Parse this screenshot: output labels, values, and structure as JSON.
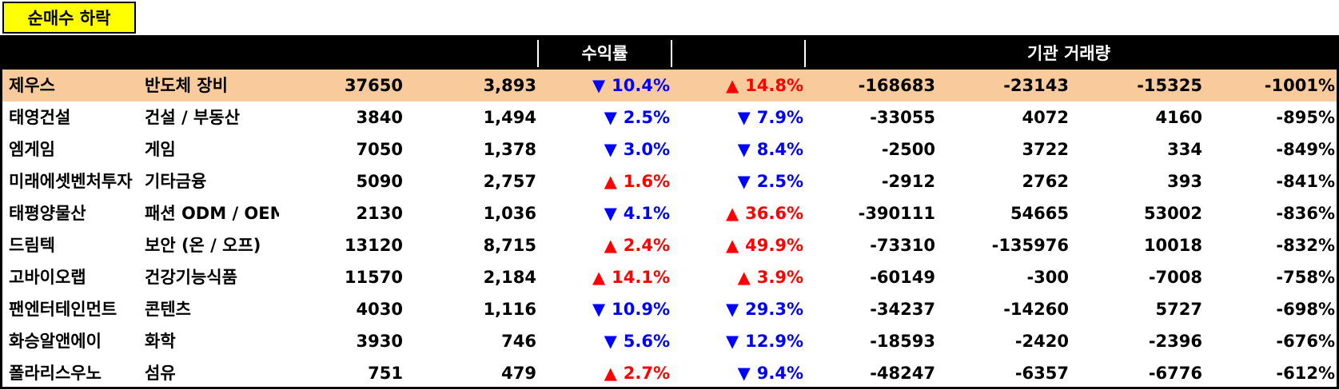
{
  "title": "순매수 하락",
  "header": {
    "group_return": "수익률",
    "group_inst": "기관 거래량"
  },
  "rows": [
    {
      "name": "제우스",
      "sector": "반도체 장비",
      "price": "37650",
      "amount": "3,893",
      "r1_dir": "down",
      "r1": "10.4%",
      "r2_dir": "up",
      "r2": "14.8%",
      "v1": "-168683",
      "v2": "-23143",
      "v3": "-15325",
      "pct": "-1001%",
      "highlight": true
    },
    {
      "name": "태영건설",
      "sector": "건설 / 부동산",
      "price": "3840",
      "amount": "1,494",
      "r1_dir": "down",
      "r1": "2.5%",
      "r2_dir": "down",
      "r2": "7.9%",
      "v1": "-33055",
      "v2": "4072",
      "v3": "4160",
      "pct": "-895%"
    },
    {
      "name": "엠게임",
      "sector": "게임",
      "price": "7050",
      "amount": "1,378",
      "r1_dir": "down",
      "r1": "3.0%",
      "r2_dir": "down",
      "r2": "8.4%",
      "v1": "-2500",
      "v2": "3722",
      "v3": "334",
      "pct": "-849%"
    },
    {
      "name": "미래에셋벤처투자",
      "sector": "기타금융",
      "price": "5090",
      "amount": "2,757",
      "r1_dir": "up",
      "r1": "1.6%",
      "r2_dir": "down",
      "r2": "2.5%",
      "v1": "-2912",
      "v2": "2762",
      "v3": "393",
      "pct": "-841%"
    },
    {
      "name": "태평양물산",
      "sector": "패션 ODM / OEM",
      "price": "2130",
      "amount": "1,036",
      "r1_dir": "down",
      "r1": "4.1%",
      "r2_dir": "up",
      "r2": "36.6%",
      "v1": "-390111",
      "v2": "54665",
      "v3": "53002",
      "pct": "-836%"
    },
    {
      "name": "드림텍",
      "sector": "보안 (온 / 오프)",
      "price": "13120",
      "amount": "8,715",
      "r1_dir": "up",
      "r1": "2.4%",
      "r2_dir": "up",
      "r2": "49.9%",
      "v1": "-73310",
      "v2": "-135976",
      "v3": "10018",
      "pct": "-832%"
    },
    {
      "name": "고바이오랩",
      "sector": "건강기능식품",
      "price": "11570",
      "amount": "2,184",
      "r1_dir": "up",
      "r1": "14.1%",
      "r2_dir": "up",
      "r2": "3.9%",
      "v1": "-60149",
      "v2": "-300",
      "v3": "-7008",
      "pct": "-758%"
    },
    {
      "name": "팬엔터테인먼트",
      "sector": "콘텐츠",
      "price": "4030",
      "amount": "1,116",
      "r1_dir": "down",
      "r1": "10.9%",
      "r2_dir": "down",
      "r2": "29.3%",
      "v1": "-34237",
      "v2": "-14260",
      "v3": "5727",
      "pct": "-698%"
    },
    {
      "name": "화승알앤에이",
      "sector": "화학",
      "price": "3930",
      "amount": "746",
      "r1_dir": "down",
      "r1": "5.6%",
      "r2_dir": "down",
      "r2": "12.9%",
      "v1": "-18593",
      "v2": "-2420",
      "v3": "-2396",
      "pct": "-676%"
    },
    {
      "name": "폴라리스우노",
      "sector": "섬유",
      "price": "751",
      "amount": "479",
      "r1_dir": "up",
      "r1": "2.7%",
      "r2_dir": "down",
      "r2": "9.4%",
      "v1": "-48247",
      "v2": "-6357",
      "v3": "-6776",
      "pct": "-612%"
    }
  ],
  "arrows": {
    "up": "▲",
    "down": "▼"
  },
  "colors": {
    "up": "#ff0000",
    "down": "#0000ff",
    "highlight": "#f9cb9c",
    "title_bg": "#ffff00"
  }
}
